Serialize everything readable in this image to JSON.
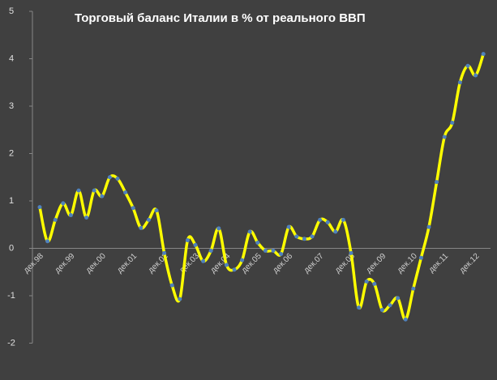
{
  "chart_data": {
    "type": "line",
    "title": "Торговый баланс Италии в % от реального ВВП",
    "categories": [
      "дек.98",
      null,
      null,
      null,
      "дек.99",
      null,
      null,
      null,
      "дек.00",
      null,
      null,
      null,
      "дек.01",
      null,
      null,
      null,
      "дек.02",
      null,
      null,
      null,
      "дек.03",
      null,
      null,
      null,
      "дек.04",
      null,
      null,
      null,
      "дек.05",
      null,
      null,
      null,
      "дек.06",
      null,
      null,
      null,
      "дек.07",
      null,
      null,
      null,
      "дек.08",
      null,
      null,
      null,
      "дек.09",
      null,
      null,
      null,
      "дек.10",
      null,
      null,
      null,
      "дек.11",
      null,
      null,
      null,
      "дек.12",
      null
    ],
    "series": [
      {
        "color": "#ffff00",
        "marker_color": "#4f81bd",
        "values": [
          0.87,
          0.15,
          0.6,
          0.95,
          0.7,
          1.22,
          0.65,
          1.22,
          1.1,
          1.5,
          1.47,
          1.18,
          0.85,
          0.43,
          0.6,
          0.8,
          -0.1,
          -0.78,
          -1.07,
          0.17,
          0.07,
          -0.27,
          -0.05,
          0.42,
          -0.35,
          -0.45,
          -0.25,
          0.35,
          0.12,
          -0.05,
          -0.05,
          -0.12,
          0.45,
          0.25,
          0.2,
          0.25,
          0.6,
          0.55,
          0.35,
          0.6,
          -0.1,
          -1.25,
          -0.7,
          -0.75,
          -1.3,
          -1.2,
          -1.05,
          -1.5,
          -0.85,
          -0.2,
          0.45,
          1.4,
          2.35,
          2.65,
          3.5,
          3.85,
          3.65,
          4.1
        ]
      }
    ],
    "ylim": [
      -2,
      5
    ],
    "yticks": [
      -2,
      -1,
      0,
      1,
      2,
      3,
      4,
      5
    ]
  }
}
